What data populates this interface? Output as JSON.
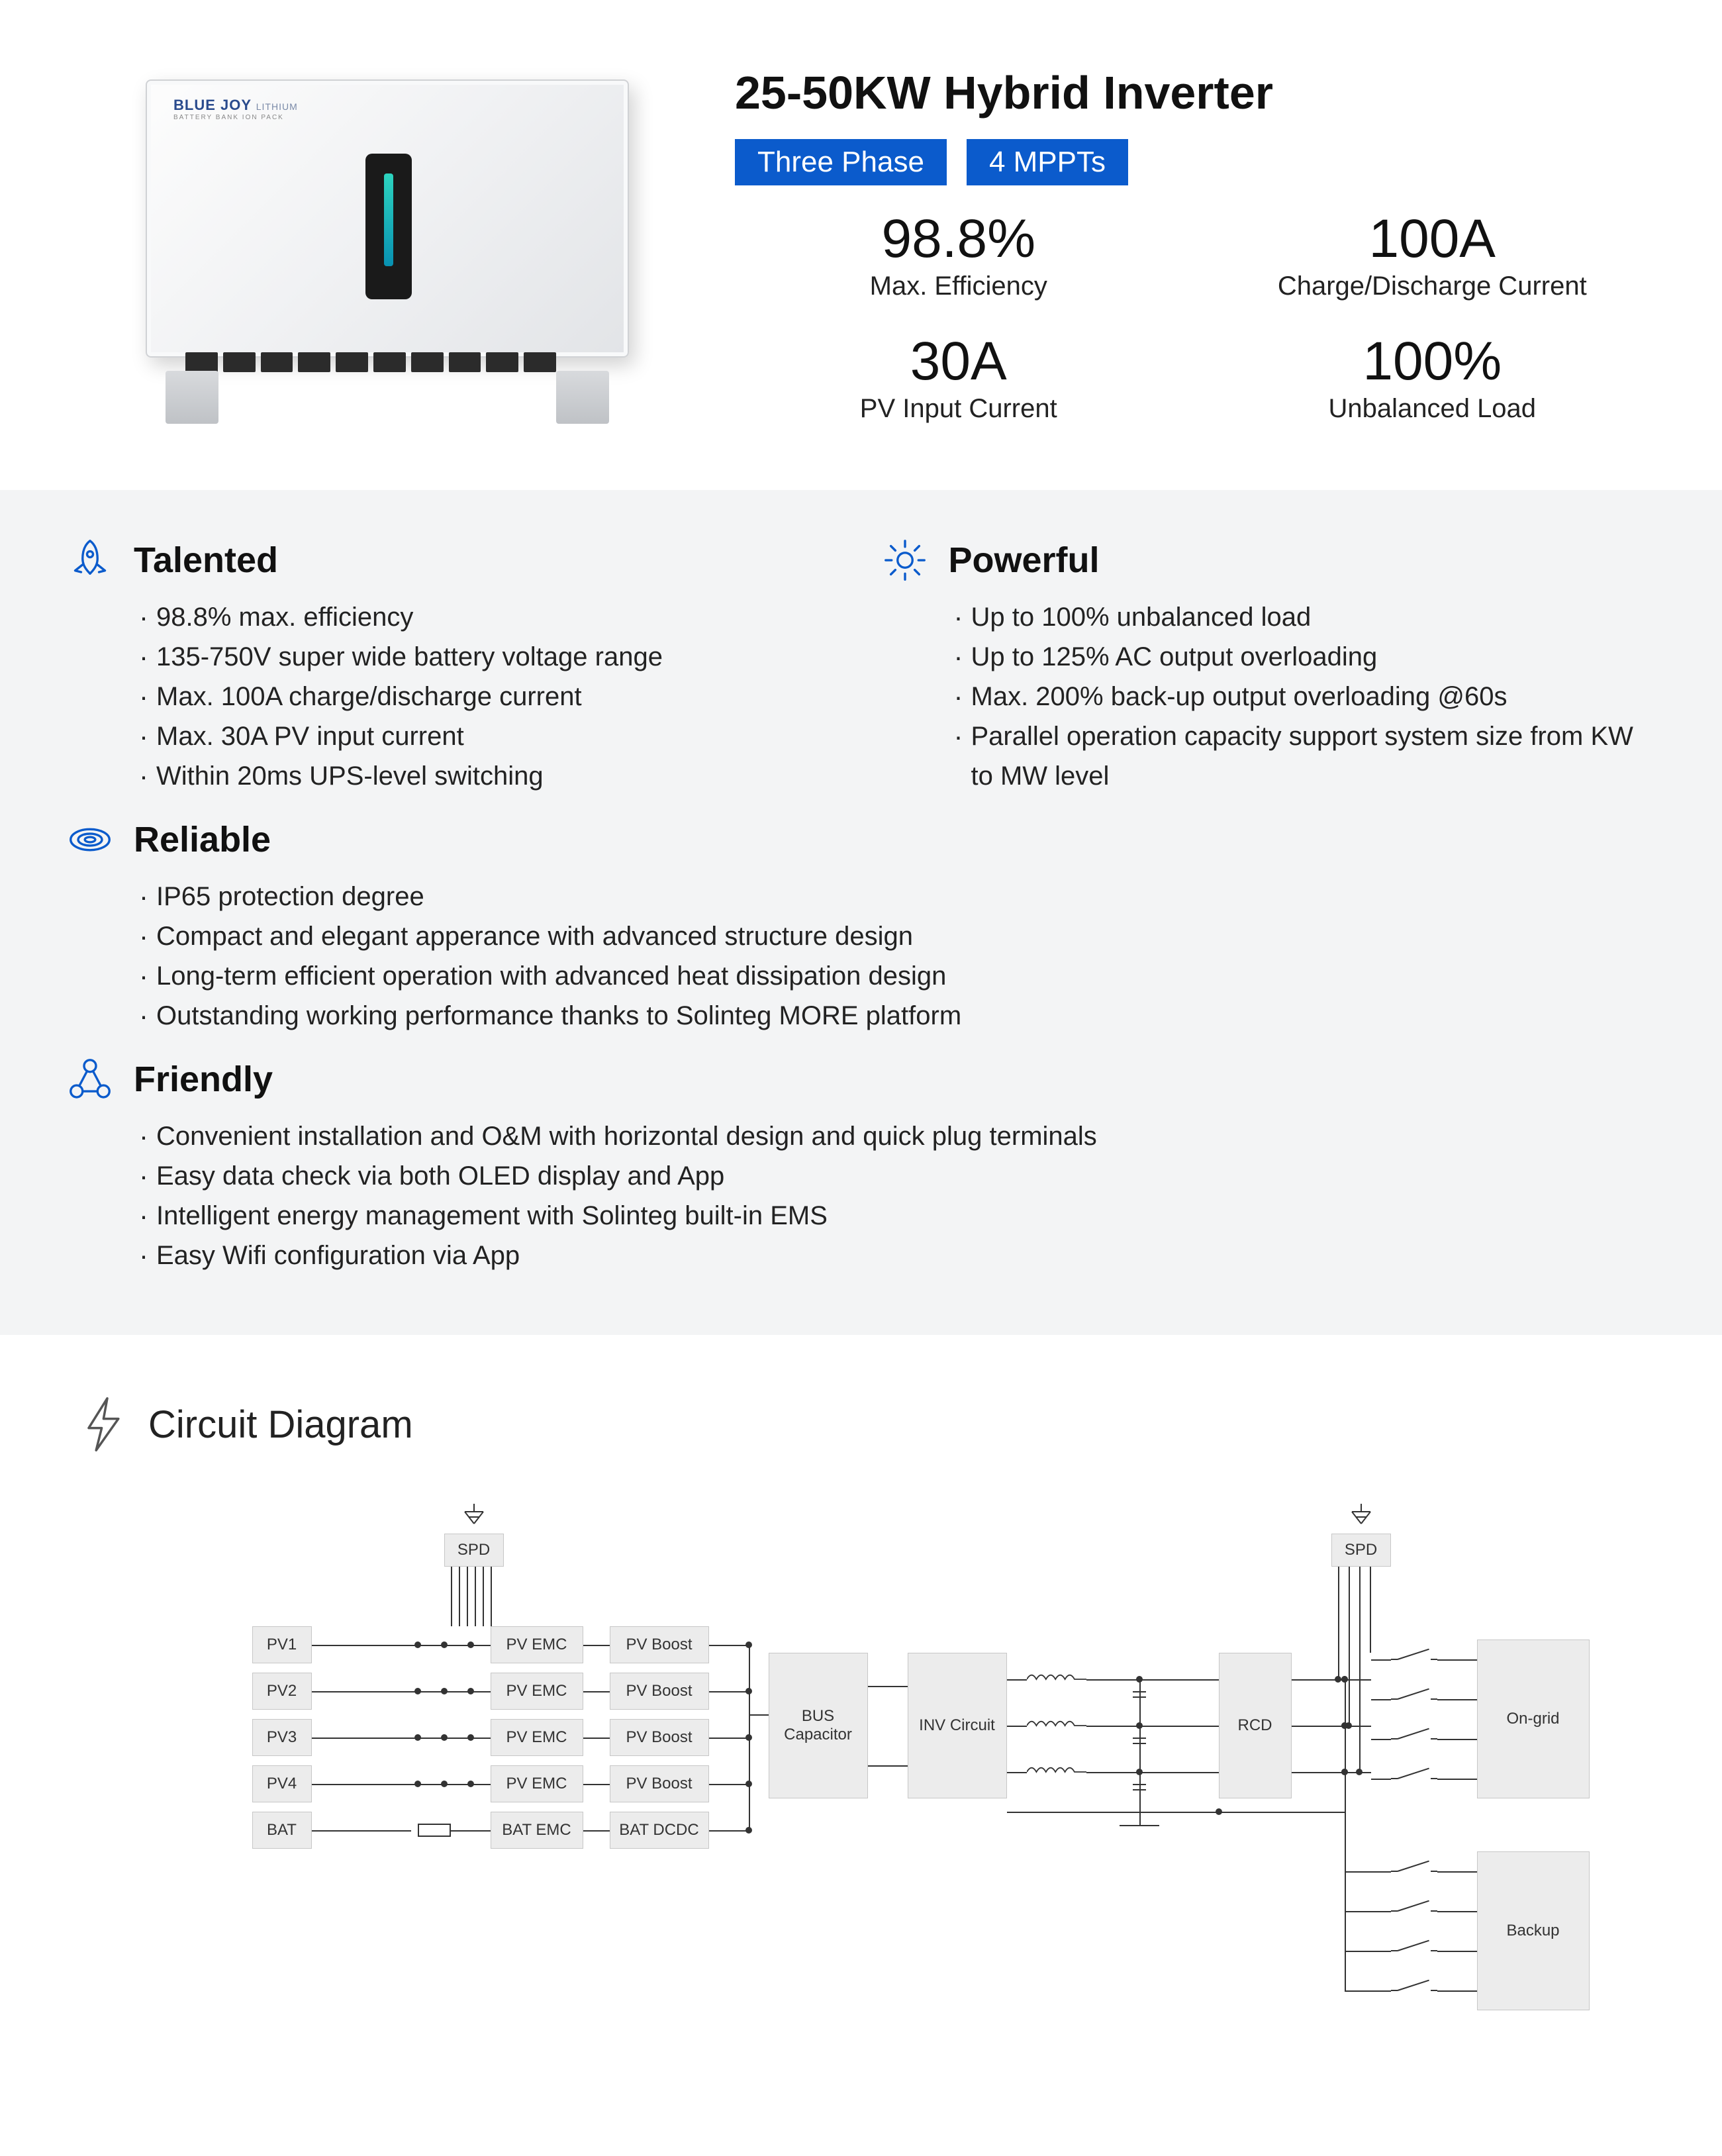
{
  "brand": {
    "name": "BLUE JOY",
    "sub": "LITHIUM",
    "tagline": "BATTERY BANK ION PACK"
  },
  "title": "25-50KW Hybrid Inverter",
  "badges": [
    "Three Phase",
    "4 MPPTs"
  ],
  "stats": [
    {
      "value": "98.8%",
      "label": "Max. Efficiency"
    },
    {
      "value": "100A",
      "label": "Charge/Discharge Current"
    },
    {
      "value": "30A",
      "label": "PV Input Current"
    },
    {
      "value": "100%",
      "label": "Unbalanced Load"
    }
  ],
  "accent_color": "#0b5bcc",
  "band_bg": "#f3f4f5",
  "features": [
    {
      "icon": "rocket",
      "title": "Talented",
      "items": [
        "98.8% max. efficiency",
        "135-750V super wide battery voltage range",
        "Max. 100A charge/discharge current",
        "Max. 30A PV input current",
        "Within 20ms UPS-level switching"
      ]
    },
    {
      "icon": "sun",
      "title": "Powerful",
      "items": [
        "Up to 100% unbalanced load",
        "Up to 125% AC output overloading",
        "Max. 200% back-up output overloading @60s",
        "Parallel operation capacity support system size from KW to MW level"
      ]
    },
    {
      "icon": "spiral",
      "title": "Reliable",
      "items": [
        "IP65 protection degree",
        "Compact and elegant apperance with advanced structure design",
        "Long-term efficient operation with advanced heat dissipation design",
        "Outstanding working performance thanks to Solinteg MORE platform"
      ]
    },
    {
      "icon": "nodes",
      "title": "Friendly",
      "items": [
        "Convenient installation and O&M with horizontal design and quick plug terminals",
        "Easy data check via both OLED display and App",
        "Intelligent energy management with Solinteg built-in EMS",
        "Easy Wifi configuration via App"
      ]
    }
  ],
  "circuit": {
    "title": "Circuit Diagram",
    "inputs": [
      "PV1",
      "PV2",
      "PV3",
      "PV4",
      "BAT"
    ],
    "spd": "SPD",
    "stages": {
      "emc": "PV EMC",
      "boost": "PV Boost",
      "bat_emc": "BAT EMC",
      "bat_dc": "BAT DCDC",
      "bus": "BUS Capacitor",
      "inv": "INV Circuit",
      "rcd": "RCD",
      "ongrid": "On-grid",
      "backup": "Backup"
    },
    "colors": {
      "block_bg": "#ececec",
      "block_border": "#c7c7c7",
      "wire": "#333333"
    }
  }
}
